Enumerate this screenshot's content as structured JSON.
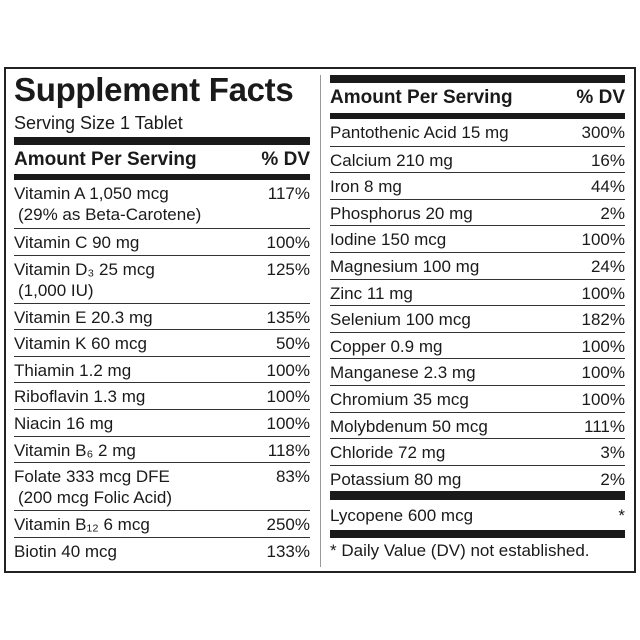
{
  "left": {
    "title": "Supplement Facts",
    "serving_size": "Serving Size 1 Tablet",
    "header": {
      "amount": "Amount Per Serving",
      "dv": "% DV"
    },
    "rows": [
      {
        "name": "Vitamin A 1,050 mcg",
        "note": "(29% as Beta-Carotene)",
        "dv": "117%"
      },
      {
        "name": "Vitamin C 90 mg",
        "dv": "100%"
      },
      {
        "name": "Vitamin D₃ 25 mcg",
        "note": "(1,000 IU)",
        "dv": "125%"
      },
      {
        "name": "Vitamin E 20.3 mg",
        "dv": "135%"
      },
      {
        "name": "Vitamin K 60 mcg",
        "dv": "50%"
      },
      {
        "name": "Thiamin 1.2 mg",
        "dv": "100%"
      },
      {
        "name": "Riboflavin 1.3 mg",
        "dv": "100%"
      },
      {
        "name": "Niacin 16 mg",
        "dv": "100%"
      },
      {
        "name": "Vitamin B₆ 2 mg",
        "dv": "118%"
      },
      {
        "name": "Folate 333 mcg DFE",
        "note": "(200 mcg Folic Acid)",
        "dv": "83%"
      },
      {
        "name": "Vitamin B₁₂ 6 mcg",
        "dv": "250%"
      },
      {
        "name": "Biotin 40 mcg",
        "dv": "133%"
      }
    ]
  },
  "right": {
    "header": {
      "amount": "Amount Per Serving",
      "dv": "% DV"
    },
    "rows": [
      {
        "name": "Pantothenic Acid 15 mg",
        "dv": "300%"
      },
      {
        "name": "Calcium 210 mg",
        "dv": "16%"
      },
      {
        "name": "Iron 8 mg",
        "dv": "44%"
      },
      {
        "name": "Phosphorus 20 mg",
        "dv": "2%"
      },
      {
        "name": "Iodine 150 mcg",
        "dv": "100%"
      },
      {
        "name": "Magnesium 100 mg",
        "dv": "24%"
      },
      {
        "name": "Zinc 11 mg",
        "dv": "100%"
      },
      {
        "name": "Selenium 100 mcg",
        "dv": "182%"
      },
      {
        "name": "Copper 0.9 mg",
        "dv": "100%"
      },
      {
        "name": "Manganese 2.3 mg",
        "dv": "100%"
      },
      {
        "name": "Chromium 35 mcg",
        "dv": "100%"
      },
      {
        "name": "Molybdenum 50 mcg",
        "dv": "111%"
      },
      {
        "name": "Chloride 72 mg",
        "dv": "3%"
      },
      {
        "name": "Potassium 80 mg",
        "dv": "2%"
      }
    ],
    "lycopene": {
      "name": "Lycopene 600 mcg",
      "dv": "*"
    },
    "footnote": "* Daily Value (DV) not established."
  }
}
